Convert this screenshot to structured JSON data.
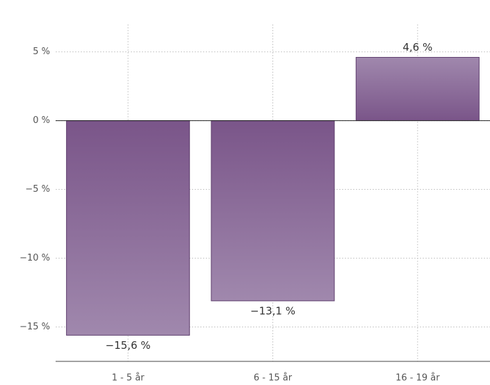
{
  "chart_data": {
    "type": "bar",
    "categories": [
      "1 - 5 år",
      "6 - 15 år",
      "16 - 19 år"
    ],
    "values": [
      -15.6,
      -13.1,
      4.6
    ],
    "value_labels": [
      "−15,6 %",
      "−13,1 %",
      "4,6 %"
    ],
    "color": "#8a6a9c",
    "ylim": [
      -17.5,
      7
    ],
    "yticks": [
      {
        "value": -15,
        "label": "−15 %"
      },
      {
        "value": -10,
        "label": "−10 %"
      },
      {
        "value": -5,
        "label": "−5 %"
      },
      {
        "value": 0,
        "label": "0 %"
      },
      {
        "value": 5,
        "label": "5 %"
      }
    ],
    "grid": true
  }
}
